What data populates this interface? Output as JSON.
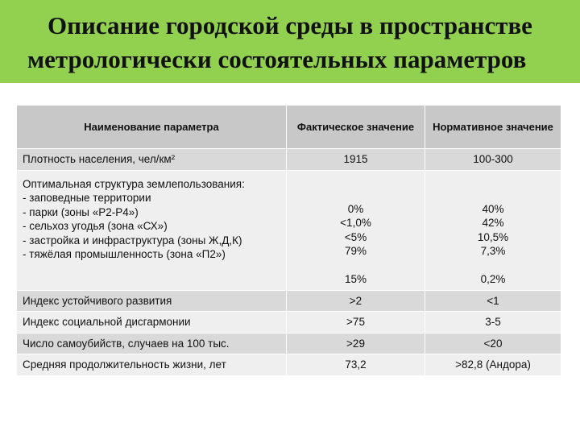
{
  "header": {
    "title_lines": [
      "Описание городской среды в пространстве",
      "метрологически состоятельных параметров"
    ]
  },
  "table": {
    "columns": [
      "Наименование параметра",
      "Фактическое значение",
      "Нормативное значение"
    ],
    "rows": [
      {
        "name": "Плотность населения, чел/км²",
        "actual": [
          "1915"
        ],
        "norm": [
          "100-300"
        ]
      },
      {
        "name": "Оптимальная структура землепользования:",
        "items": [
          "- заповедные территории",
          "- парки (зоны «Р2-Р4»)",
          "- сельхоз угодья (зона «СХ»)",
          "- застройка и инфраструктура (зоны Ж,Д,К)",
          "- тяжёлая промышленность (зона «П2»)"
        ],
        "actual": [
          "0%",
          "<1,0%",
          "<5%",
          "79%",
          "15%"
        ],
        "norm": [
          "40%",
          "42%",
          "10,5%",
          "7,3%",
          "0,2%"
        ]
      },
      {
        "name": "Индекс устойчивого развития",
        "actual": [
          ">2"
        ],
        "norm": [
          "<1"
        ]
      },
      {
        "name": "Индекс социальной дисгармонии",
        "actual": [
          ">75"
        ],
        "norm": [
          "3-5"
        ]
      },
      {
        "name": "Число самоубийств, случаев на 100 тыс.",
        "actual": [
          ">29"
        ],
        "norm": [
          "<20"
        ]
      },
      {
        "name": "Средняя продолжительность жизни, лет",
        "actual": [
          "73,2"
        ],
        "norm": [
          ">82,8 (Андора)"
        ]
      }
    ]
  }
}
